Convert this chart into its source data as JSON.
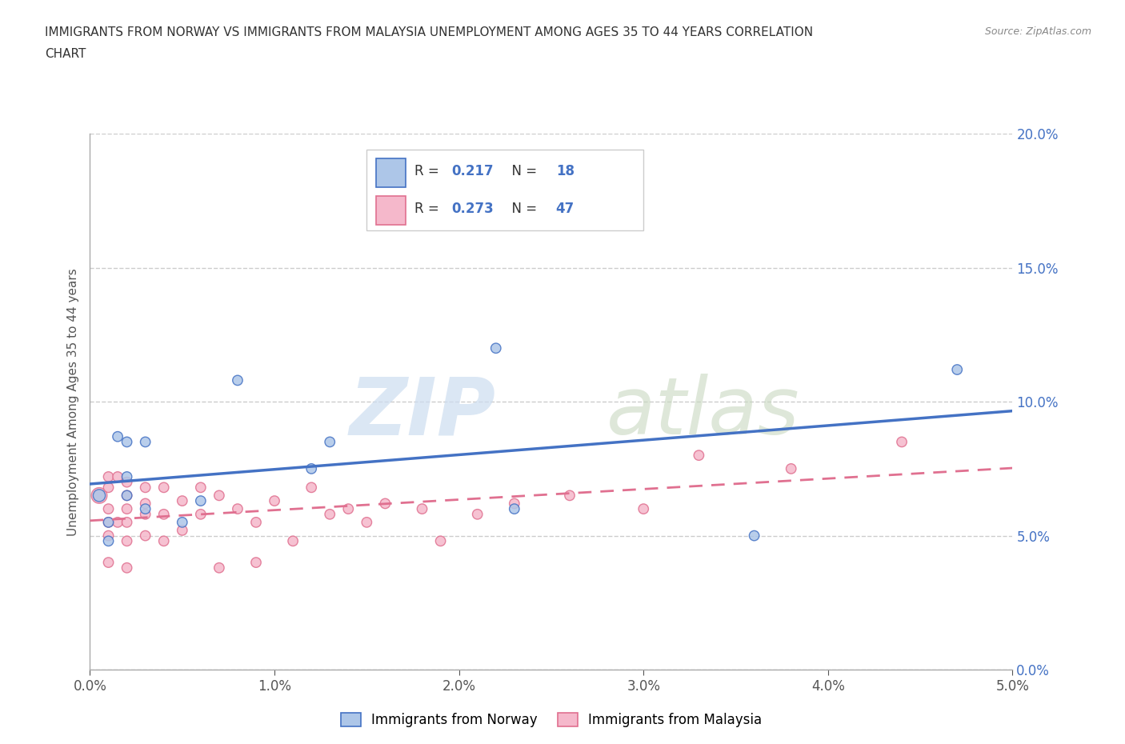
{
  "title_line1": "IMMIGRANTS FROM NORWAY VS IMMIGRANTS FROM MALAYSIA UNEMPLOYMENT AMONG AGES 35 TO 44 YEARS CORRELATION",
  "title_line2": "CHART",
  "source": "Source: ZipAtlas.com",
  "ylabel": "Unemployment Among Ages 35 to 44 years",
  "legend_label_norway": "Immigrants from Norway",
  "legend_label_malaysia": "Immigrants from Malaysia",
  "R_norway": 0.217,
  "N_norway": 18,
  "R_malaysia": 0.273,
  "N_malaysia": 47,
  "xlim": [
    0.0,
    0.05
  ],
  "ylim": [
    0.0,
    0.2
  ],
  "xticks": [
    0.0,
    0.01,
    0.02,
    0.03,
    0.04,
    0.05
  ],
  "yticks": [
    0.0,
    0.05,
    0.1,
    0.15,
    0.2
  ],
  "color_norway": "#adc6e8",
  "color_malaysia": "#f5b8cb",
  "line_color_norway": "#4472c4",
  "line_color_malaysia": "#e07090",
  "norway_x": [
    0.0005,
    0.001,
    0.001,
    0.0015,
    0.002,
    0.002,
    0.002,
    0.003,
    0.003,
    0.005,
    0.006,
    0.008,
    0.012,
    0.013,
    0.022,
    0.023,
    0.036,
    0.047
  ],
  "norway_y": [
    0.065,
    0.055,
    0.048,
    0.087,
    0.085,
    0.072,
    0.065,
    0.085,
    0.06,
    0.055,
    0.063,
    0.108,
    0.075,
    0.085,
    0.12,
    0.06,
    0.05,
    0.112
  ],
  "norway_size": [
    120,
    80,
    80,
    80,
    80,
    80,
    80,
    80,
    80,
    80,
    80,
    80,
    80,
    80,
    80,
    80,
    80,
    80
  ],
  "malaysia_x": [
    0.0005,
    0.001,
    0.001,
    0.001,
    0.001,
    0.001,
    0.001,
    0.0015,
    0.0015,
    0.002,
    0.002,
    0.002,
    0.002,
    0.002,
    0.002,
    0.003,
    0.003,
    0.003,
    0.003,
    0.004,
    0.004,
    0.004,
    0.005,
    0.005,
    0.006,
    0.006,
    0.007,
    0.007,
    0.008,
    0.009,
    0.009,
    0.01,
    0.011,
    0.012,
    0.013,
    0.014,
    0.015,
    0.016,
    0.018,
    0.019,
    0.021,
    0.023,
    0.026,
    0.03,
    0.033,
    0.038,
    0.044
  ],
  "malaysia_y": [
    0.065,
    0.072,
    0.068,
    0.06,
    0.055,
    0.05,
    0.04,
    0.072,
    0.055,
    0.07,
    0.065,
    0.06,
    0.055,
    0.048,
    0.038,
    0.068,
    0.062,
    0.058,
    0.05,
    0.068,
    0.058,
    0.048,
    0.063,
    0.052,
    0.068,
    0.058,
    0.065,
    0.038,
    0.06,
    0.055,
    0.04,
    0.063,
    0.048,
    0.068,
    0.058,
    0.06,
    0.055,
    0.062,
    0.06,
    0.048,
    0.058,
    0.062,
    0.065,
    0.06,
    0.08,
    0.075,
    0.085
  ],
  "malaysia_size": [
    200,
    80,
    80,
    80,
    80,
    80,
    80,
    80,
    80,
    80,
    80,
    80,
    80,
    80,
    80,
    80,
    80,
    80,
    80,
    80,
    80,
    80,
    80,
    80,
    80,
    80,
    80,
    80,
    80,
    80,
    80,
    80,
    80,
    80,
    80,
    80,
    80,
    80,
    80,
    80,
    80,
    80,
    80,
    80,
    80,
    80,
    80
  ],
  "background_color": "#ffffff",
  "grid_color": "#cccccc",
  "tick_color_right": "#4472c4",
  "tick_color_x": "#555555"
}
